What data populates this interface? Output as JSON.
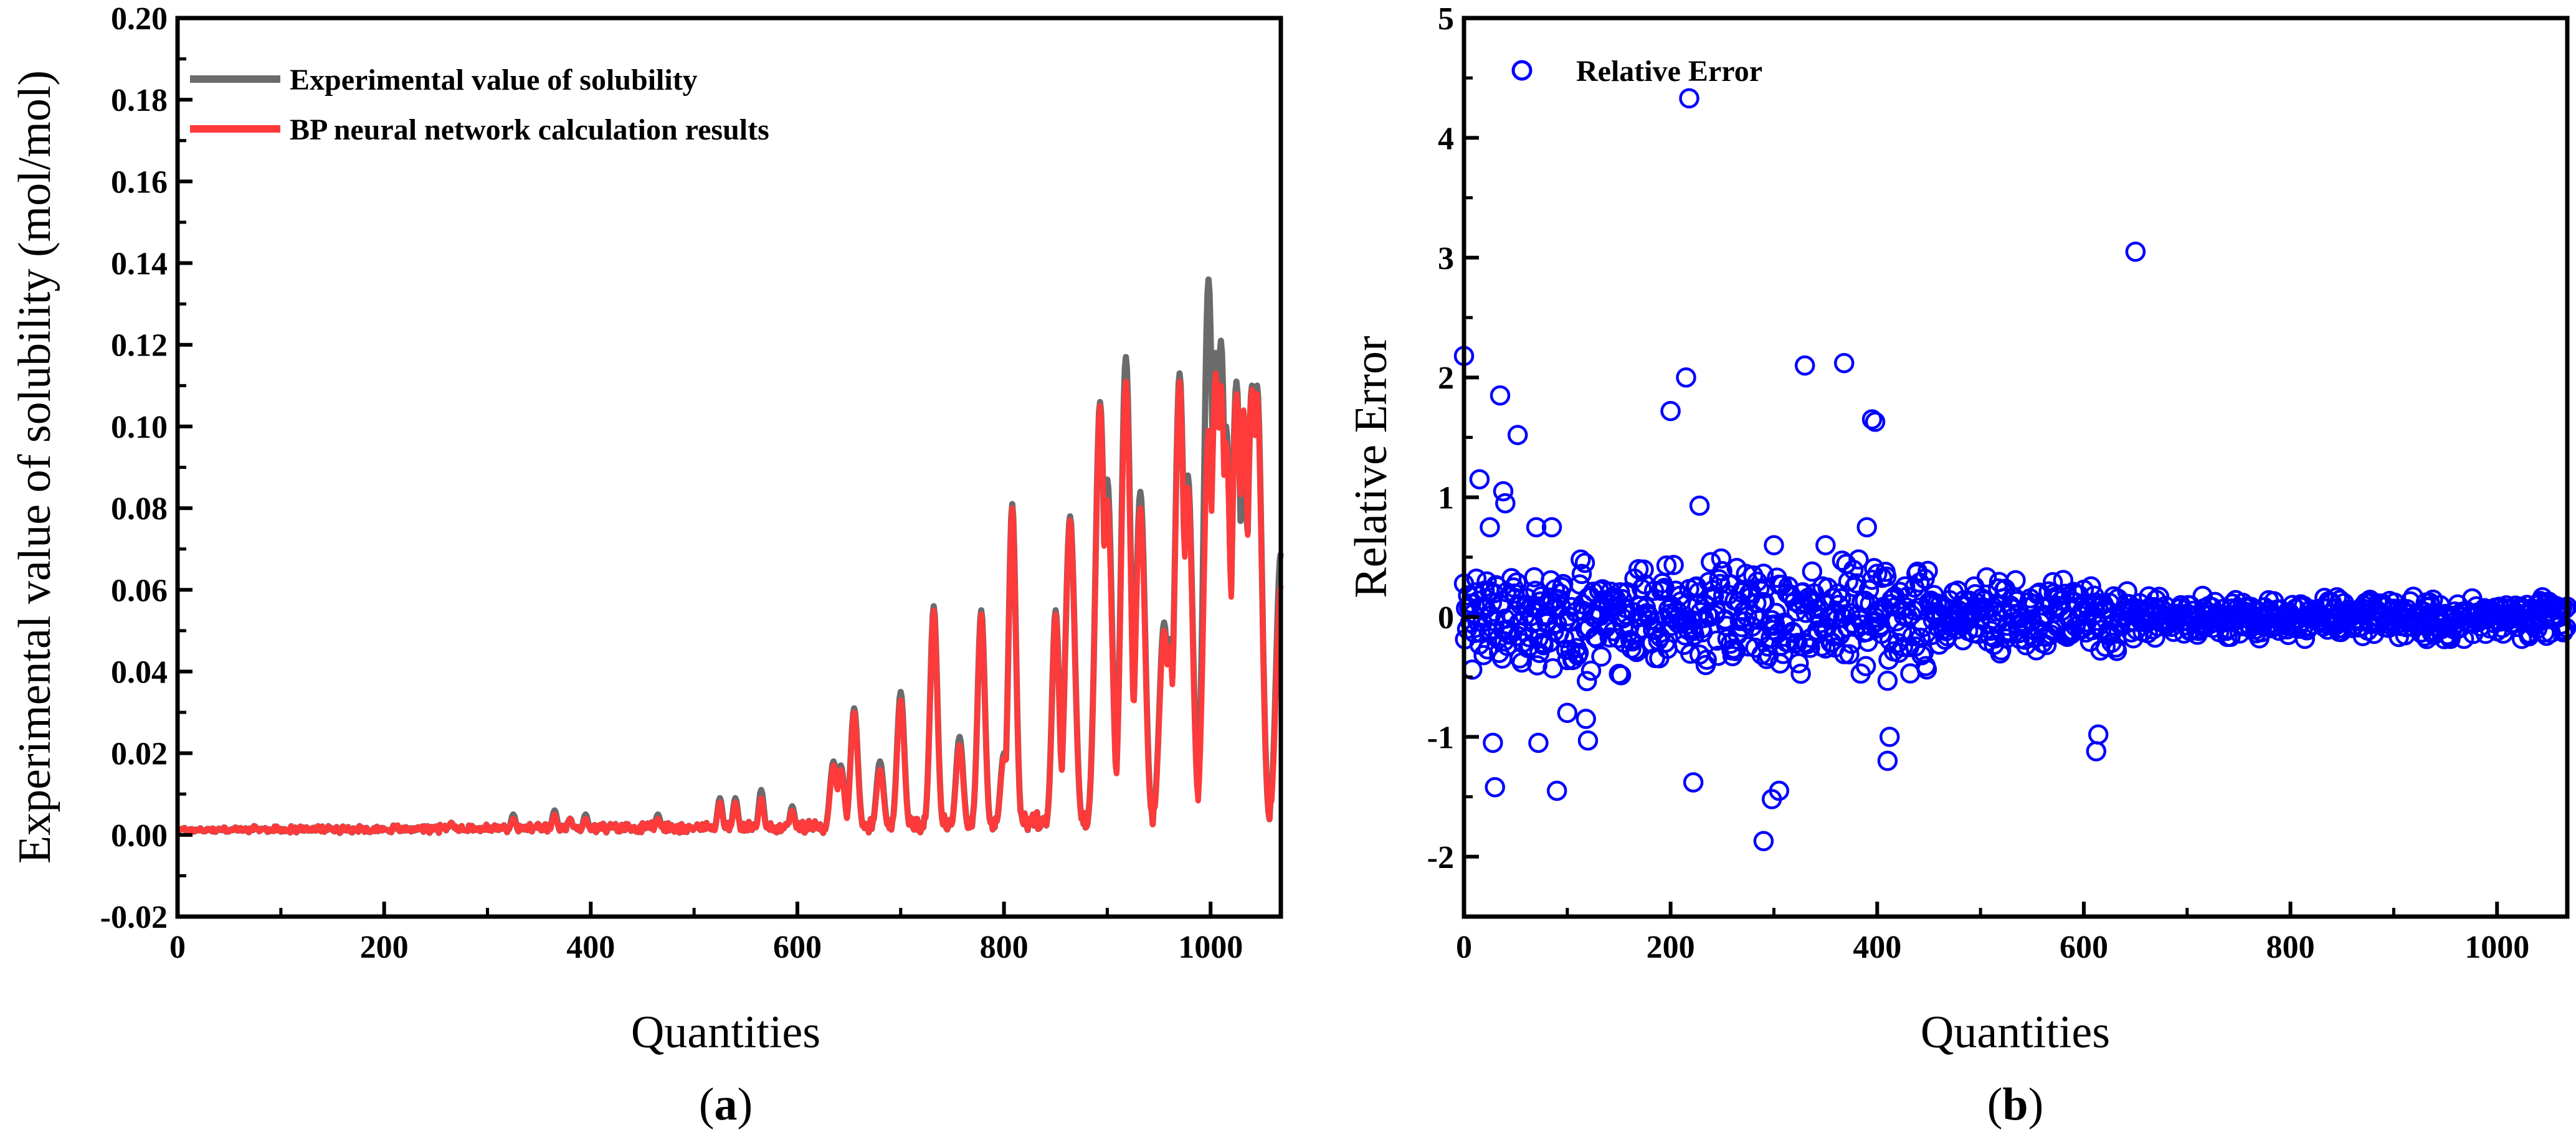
{
  "chart_data": [
    {
      "type": "line",
      "panel_label": "a",
      "xlabel": "Quantities",
      "ylabel": "Experimental value of solubility (mol/mol)",
      "xlim": [
        0,
        1068
      ],
      "ylim": [
        -0.02,
        0.2
      ],
      "xticks": [
        0,
        200,
        400,
        600,
        800,
        1000
      ],
      "xtick_labels": [
        "0",
        "200",
        "400",
        "600",
        "800",
        "1000"
      ],
      "yticks": [
        -0.02,
        0.0,
        0.02,
        0.04,
        0.06,
        0.08,
        0.1,
        0.12,
        0.14,
        0.16,
        0.18,
        0.2
      ],
      "ytick_labels": [
        "-0.02",
        "0.00",
        "0.02",
        "0.04",
        "0.06",
        "0.08",
        "0.10",
        "0.12",
        "0.14",
        "0.16",
        "0.18",
        "0.20"
      ],
      "legend_position": "top-left",
      "baseline": 0.001,
      "series": [
        {
          "name": "Experimental value of solubility",
          "color": "#6b6b6b",
          "peaks": [
            [
              265,
              0.003
            ],
            [
              325,
              0.005
            ],
            [
              365,
              0.006
            ],
            [
              380,
              0.004
            ],
            [
              395,
              0.005
            ],
            [
              465,
              0.005
            ],
            [
              525,
              0.009
            ],
            [
              540,
              0.009
            ],
            [
              565,
              0.011
            ],
            [
              595,
              0.007
            ],
            [
              635,
              0.018
            ],
            [
              642,
              0.017
            ],
            [
              655,
              0.031
            ],
            [
              680,
              0.018
            ],
            [
              700,
              0.035
            ],
            [
              732,
              0.056
            ],
            [
              757,
              0.024
            ],
            [
              778,
              0.055
            ],
            [
              800,
              0.02
            ],
            [
              808,
              0.081
            ],
            [
              850,
              0.055
            ],
            [
              864,
              0.078
            ],
            [
              893,
              0.106
            ],
            [
              900,
              0.087
            ],
            [
              918,
              0.117
            ],
            [
              932,
              0.084
            ],
            [
              955,
              0.052
            ],
            [
              960,
              0.048
            ],
            [
              970,
              0.113
            ],
            [
              978,
              0.088
            ],
            [
              998,
              0.136
            ],
            [
              1005,
              0.118
            ],
            [
              1010,
              0.121
            ],
            [
              1015,
              0.1
            ],
            [
              1025,
              0.111
            ],
            [
              1032,
              0.096
            ],
            [
              1040,
              0.11
            ],
            [
              1045,
              0.11
            ],
            [
              1068,
              0.069
            ]
          ]
        },
        {
          "name": "BP neural network calculation results",
          "color": "#ff3a3a",
          "peaks": [
            [
              265,
              0.003
            ],
            [
              325,
              0.004
            ],
            [
              365,
              0.005
            ],
            [
              380,
              0.004
            ],
            [
              395,
              0.004
            ],
            [
              465,
              0.004
            ],
            [
              525,
              0.008
            ],
            [
              540,
              0.008
            ],
            [
              565,
              0.009
            ],
            [
              595,
              0.006
            ],
            [
              635,
              0.017
            ],
            [
              642,
              0.016
            ],
            [
              655,
              0.03
            ],
            [
              680,
              0.016
            ],
            [
              700,
              0.033
            ],
            [
              732,
              0.055
            ],
            [
              757,
              0.022
            ],
            [
              778,
              0.054
            ],
            [
              800,
              0.019
            ],
            [
              808,
              0.08
            ],
            [
              850,
              0.054
            ],
            [
              864,
              0.077
            ],
            [
              893,
              0.105
            ],
            [
              900,
              0.082
            ],
            [
              918,
              0.111
            ],
            [
              932,
              0.08
            ],
            [
              955,
              0.05
            ],
            [
              960,
              0.046
            ],
            [
              970,
              0.111
            ],
            [
              978,
              0.085
            ],
            [
              998,
              0.099
            ],
            [
              1005,
              0.113
            ],
            [
              1010,
              0.11
            ],
            [
              1015,
              0.096
            ],
            [
              1025,
              0.108
            ],
            [
              1032,
              0.104
            ],
            [
              1040,
              0.109
            ],
            [
              1045,
              0.108
            ],
            [
              1068,
              0.061
            ]
          ]
        }
      ]
    },
    {
      "type": "scatter",
      "panel_label": "b",
      "xlabel": "Quantities",
      "ylabel": "Relative Error",
      "xlim": [
        0,
        1068
      ],
      "ylim": [
        -2.5,
        5
      ],
      "xticks": [
        0,
        200,
        400,
        600,
        800,
        1000
      ],
      "xtick_labels": [
        "0",
        "200",
        "400",
        "600",
        "800",
        "1000"
      ],
      "yticks": [
        -2,
        -1,
        0,
        1,
        2,
        3,
        4,
        5
      ],
      "ytick_labels": [
        "-2",
        "-1",
        "0",
        "1",
        "2",
        "3",
        "4",
        "5"
      ],
      "legend_position": "top-left",
      "series": [
        {
          "name": "Relative Error",
          "color": "#0000ff",
          "notable_points": [
            [
              0,
              2.18
            ],
            [
              15,
              1.15
            ],
            [
              25,
              0.75
            ],
            [
              28,
              -1.05
            ],
            [
              30,
              -1.42
            ],
            [
              35,
              1.85
            ],
            [
              38,
              1.05
            ],
            [
              40,
              0.95
            ],
            [
              52,
              1.52
            ],
            [
              70,
              0.75
            ],
            [
              72,
              -1.05
            ],
            [
              85,
              0.75
            ],
            [
              90,
              -1.45
            ],
            [
              100,
              -0.8
            ],
            [
              118,
              -0.85
            ],
            [
              120,
              -1.03
            ],
            [
              200,
              1.72
            ],
            [
              215,
              2.0
            ],
            [
              218,
              4.33
            ],
            [
              222,
              -1.38
            ],
            [
              228,
              0.93
            ],
            [
              290,
              -1.87
            ],
            [
              298,
              -1.52
            ],
            [
              305,
              -1.45
            ],
            [
              330,
              2.1
            ],
            [
              368,
              2.12
            ],
            [
              390,
              0.75
            ],
            [
              395,
              1.65
            ],
            [
              398,
              1.63
            ],
            [
              410,
              -1.2
            ],
            [
              612,
              -1.12
            ],
            [
              614,
              -0.98
            ],
            [
              650,
              3.05
            ],
            [
              412,
              -1.0
            ],
            [
              350,
              0.6
            ],
            [
              300,
              0.6
            ]
          ]
        }
      ]
    }
  ],
  "legend_a": {
    "experimental": "Experimental value of solubility",
    "bp": "BP neural network calculation results"
  },
  "legend_b": {
    "relative_error": "Relative Error"
  },
  "panel_labels": {
    "a_open": "(",
    "a_letter": "a",
    "a_close": ")",
    "b_open": "(",
    "b_letter": "b",
    "b_close": ")"
  }
}
